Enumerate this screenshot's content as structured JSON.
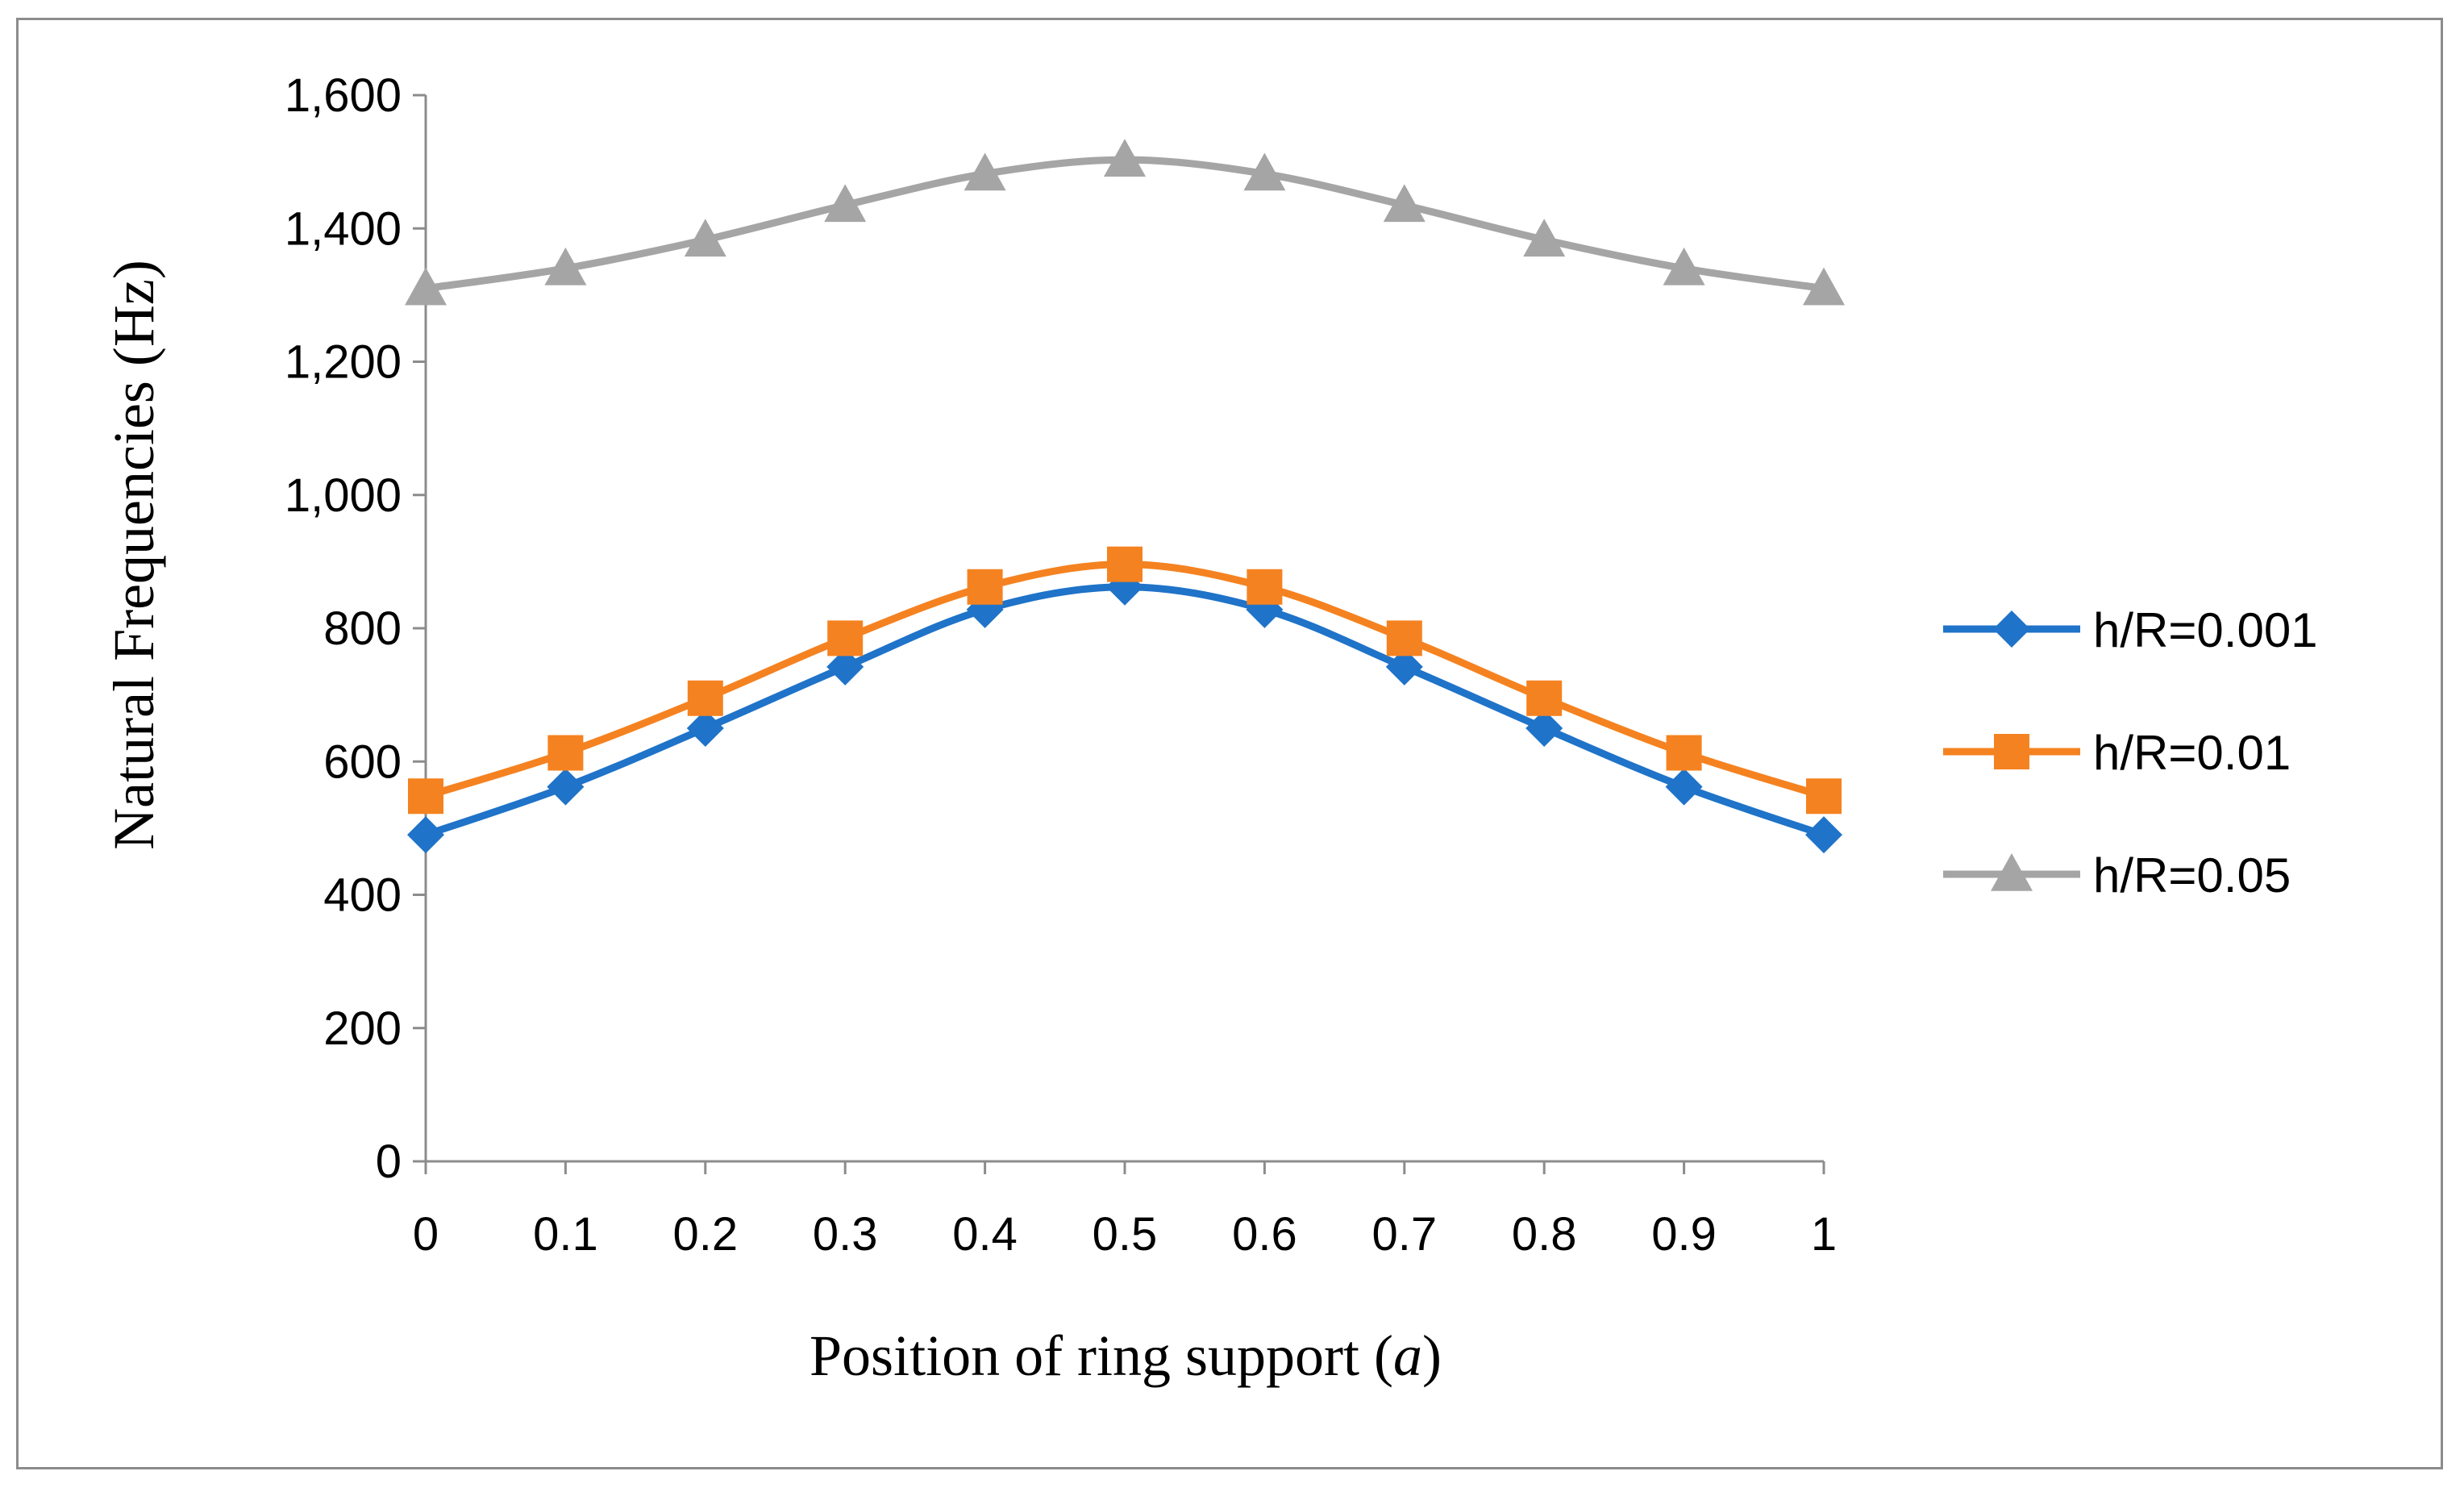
{
  "chart_data": {
    "type": "line",
    "title": "",
    "xlabel": "Position of ring support (",
    "xlabel_var": "a",
    "xlabel_close": ")",
    "ylabel": "Natural Frequencies (Hz)",
    "x": [
      0,
      0.1,
      0.2,
      0.3,
      0.4,
      0.5,
      0.6,
      0.7,
      0.8,
      0.9,
      1
    ],
    "x_tick_labels": [
      "0",
      "0.1",
      "0.2",
      "0.3",
      "0.4",
      "0.5",
      "0.6",
      "0.7",
      "0.8",
      "0.9",
      "1"
    ],
    "ylim": [
      0,
      1600
    ],
    "y_ticks": [
      0,
      200,
      400,
      600,
      800,
      1000,
      1200,
      1400,
      1600
    ],
    "y_tick_labels": [
      "0",
      "200",
      "400",
      "600",
      "800",
      "1,000",
      "1,200",
      "1,400",
      "1,600"
    ],
    "grid": false,
    "legend_position": "right",
    "series": [
      {
        "name": "h/R=0.001",
        "marker": "diamond",
        "color": "#1f73c8",
        "values": [
          490,
          562,
          650,
          742,
          828,
          862,
          828,
          742,
          650,
          562,
          490
        ]
      },
      {
        "name": "h/R=0.01",
        "marker": "square",
        "color": "#f58220",
        "values": [
          548,
          613,
          695,
          785,
          862,
          896,
          862,
          785,
          695,
          613,
          548
        ]
      },
      {
        "name": "h/R=0.05",
        "marker": "triangle",
        "color": "#a5a5a5",
        "values": [
          1310,
          1340,
          1383,
          1435,
          1482,
          1503,
          1482,
          1435,
          1383,
          1340,
          1310
        ]
      }
    ]
  }
}
